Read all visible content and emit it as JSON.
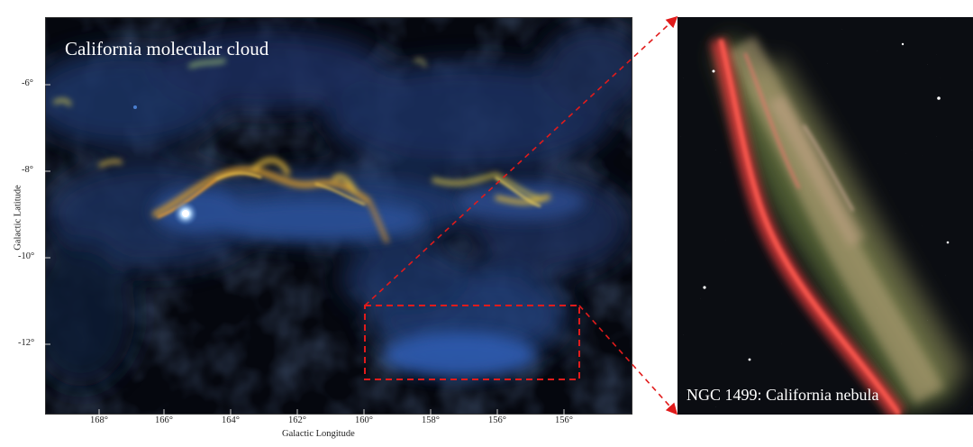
{
  "map": {
    "title": "California molecular cloud",
    "x_axis_title": "Galactic Longitude",
    "y_axis_title": "Galactic Latitude",
    "x_ticks": [
      "168°",
      "166°",
      "164°",
      "162°",
      "160°",
      "158°",
      "156°"
    ],
    "y_ticks": [
      "-6°",
      "-8°",
      "-10°",
      "-12°"
    ]
  },
  "inset": {
    "caption": "NGC 1499: California nebula"
  },
  "colors": {
    "dust_blue": "#2b4f8c",
    "filament_yellow": "#e8c53a",
    "filament_orange": "#e07a2a",
    "nebula_red": "#e0393a",
    "nebula_green": "#9aaa55",
    "highlight_dash": "#e11b1b"
  }
}
